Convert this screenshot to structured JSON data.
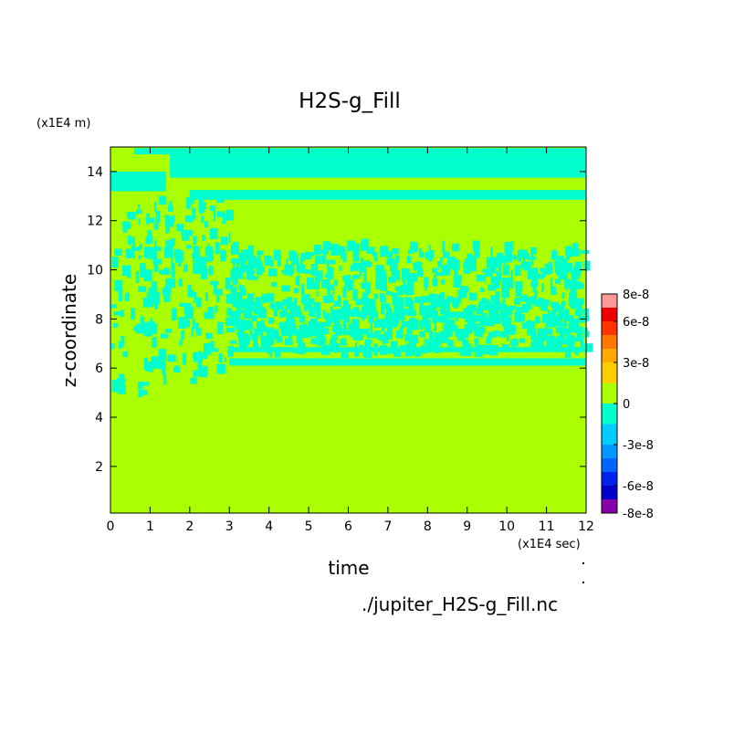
{
  "chart_data": {
    "type": "heatmap",
    "title": "H2S-g_Fill",
    "xlabel": "time",
    "ylabel": "z-coordinate",
    "x_unit": "(x1E4 sec)",
    "y_unit": "(x1E4 m)",
    "xlim": [
      0,
      12
    ],
    "ylim": [
      0.1,
      15
    ],
    "x_ticks": [
      "0",
      "1",
      "2",
      "3",
      "4",
      "5",
      "6",
      "7",
      "8",
      "9",
      "10",
      "11",
      "12"
    ],
    "y_ticks": [
      "2",
      "4",
      "6",
      "8",
      "10",
      "12",
      "14"
    ],
    "colorbar": {
      "range": [
        -8e-08,
        8e-08
      ],
      "tick_labels": [
        "8e-8",
        "6e-8",
        "3e-8",
        "0",
        "-3e-8",
        "-6e-8",
        "-8e-8"
      ],
      "tick_values": [
        8e-08,
        6e-08,
        3e-08,
        0,
        -3e-08,
        -6e-08,
        -8e-08
      ],
      "level_colors_low_to_high": [
        "#8800aa",
        "#0000cc",
        "#0022ee",
        "#0066ff",
        "#0099ff",
        "#00ccff",
        "#00ffcc",
        "#aaff00",
        "#ffcc00",
        "#ffaa00",
        "#ff7700",
        "#ff3300",
        "#ee0000",
        "#ff9999"
      ],
      "level_bounds": [
        -8e-08,
        -7e-08,
        -6e-08,
        -5e-08,
        -4e-08,
        -3e-08,
        -1.5e-08,
        0,
        1.5e-08,
        3e-08,
        4e-08,
        5e-08,
        6e-08,
        7e-08,
        8e-08
      ]
    },
    "dominant_colors": {
      "zero_band": "#aaff00",
      "negative_small": "#00ffcc"
    },
    "field_summary": [
      {
        "region": "z below ~6 (all times)",
        "value_range": [
          0,
          1.5e-08
        ]
      },
      {
        "region": "z ~6.1-6.4 after t~3",
        "value_range": [
          -1.5e-08,
          0
        ]
      },
      {
        "region": "z ~6.6-10.5, t 0-12",
        "value_range": "mixed [-1.5e-8, 1.5e-8]"
      },
      {
        "region": "z ~12.8-13.2 after t~2",
        "value_range": [
          -1.5e-08,
          0
        ]
      },
      {
        "region": "z ~13.7-14.7 after t~1",
        "value_range": [
          -1.5e-08,
          0
        ]
      }
    ]
  },
  "footer": {
    "source_file": "./jupiter_H2S-g_Fill.nc"
  }
}
